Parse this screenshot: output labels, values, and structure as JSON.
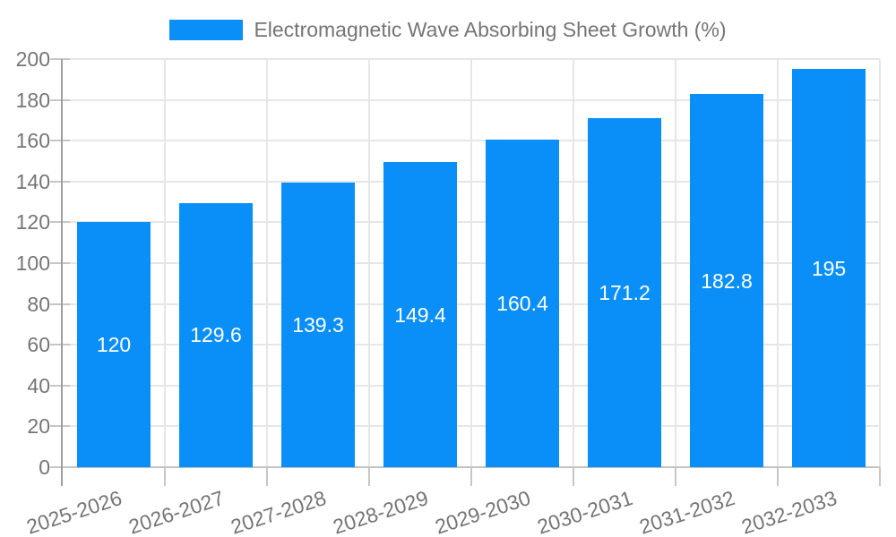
{
  "chart_data": {
    "type": "bar",
    "legend_label": "Electromagnetic Wave Absorbing Sheet Growth (%)",
    "legend_position": "top-center",
    "categories": [
      "2025-2026",
      "2026-2027",
      "2027-2028",
      "2028-2029",
      "2029-2030",
      "2030-2031",
      "2031-2032",
      "2032-2033"
    ],
    "values": [
      120,
      129.6,
      139.3,
      149.4,
      160.4,
      171.2,
      182.8,
      195
    ],
    "title": "",
    "xlabel": "",
    "ylabel": "",
    "ylim": [
      0,
      200
    ],
    "ytick_step": 20,
    "grid": true,
    "value_labels_inside_bars": true,
    "colors": {
      "bar": "#0a8ff8",
      "value_label_text": "#ffffff",
      "axis_text": "#757575",
      "gridline": "#e6e6e6",
      "baseline": "#c2c2c2",
      "tick": "#c6c6c6",
      "axis_line": "#9e9e9e",
      "background": "#ffffff"
    }
  }
}
